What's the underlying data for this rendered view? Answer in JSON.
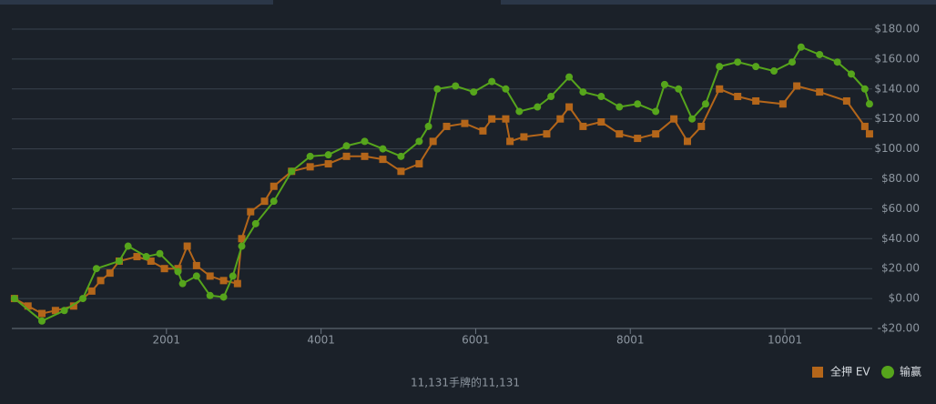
{
  "chart_data": {
    "type": "line",
    "footer": "11,131手牌的11,131",
    "xlim": [
      1,
      11131
    ],
    "xticks": [
      2001,
      4001,
      6001,
      8001,
      10001
    ],
    "ylim": [
      -20,
      180
    ],
    "yticks": [
      {
        "value": -20,
        "label": "-$20.00"
      },
      {
        "value": 0,
        "label": "$0.00"
      },
      {
        "value": 20,
        "label": "$20.00"
      },
      {
        "value": 40,
        "label": "$40.00"
      },
      {
        "value": 60,
        "label": "$60.00"
      },
      {
        "value": 80,
        "label": "$80.00"
      },
      {
        "value": 100,
        "label": "$100.00"
      },
      {
        "value": 120,
        "label": "$120.00"
      },
      {
        "value": 140,
        "label": "$140.00"
      },
      {
        "value": 160,
        "label": "$160.00"
      },
      {
        "value": 180,
        "label": "$180.00"
      }
    ],
    "grid": true,
    "series": [
      {
        "name": "全押 EV",
        "color": "#b4661a",
        "marker": "square",
        "x": [
          35,
          210,
          390,
          565,
          800,
          1035,
          1150,
          1270,
          1390,
          1620,
          1800,
          1975,
          2150,
          2270,
          2390,
          2565,
          2740,
          2920,
          2975,
          3090,
          3270,
          3390,
          3620,
          3860,
          4095,
          4330,
          4565,
          4800,
          5035,
          5270,
          5450,
          5625,
          5860,
          6095,
          6210,
          6390,
          6445,
          6625,
          6920,
          7095,
          7210,
          7390,
          7625,
          7860,
          8095,
          8330,
          8565,
          8740,
          8920,
          9155,
          9390,
          9625,
          9975,
          10155,
          10450,
          10800,
          11035,
          11095
        ],
        "values": [
          0,
          -5,
          -10,
          -8,
          -5,
          5,
          12,
          17,
          25,
          28,
          25,
          20,
          20,
          35,
          22,
          15,
          12,
          10,
          40,
          58,
          65,
          75,
          85,
          88,
          90,
          95,
          95,
          93,
          85,
          90,
          105,
          115,
          117,
          112,
          120,
          120,
          105,
          108,
          110,
          120,
          128,
          115,
          118,
          110,
          107,
          110,
          120,
          105,
          115,
          140,
          135,
          132,
          130,
          142,
          138,
          132,
          115,
          110
        ]
      },
      {
        "name": "输赢",
        "color": "#56a51c",
        "marker": "circle",
        "x": [
          35,
          390,
          680,
          920,
          1095,
          1390,
          1505,
          1740,
          1915,
          2150,
          2210,
          2390,
          2565,
          2740,
          2860,
          2975,
          3155,
          3390,
          3620,
          3860,
          4095,
          4330,
          4565,
          4800,
          5035,
          5270,
          5390,
          5505,
          5740,
          5975,
          6210,
          6390,
          6565,
          6800,
          6975,
          7210,
          7390,
          7625,
          7860,
          8095,
          8330,
          8445,
          8625,
          8800,
          8975,
          9155,
          9390,
          9625,
          9860,
          10095,
          10210,
          10450,
          10680,
          10860,
          11035,
          11095
        ],
        "values": [
          0,
          -15,
          -8,
          0,
          20,
          25,
          35,
          28,
          30,
          18,
          10,
          15,
          2,
          1,
          15,
          35,
          50,
          65,
          85,
          95,
          96,
          102,
          105,
          100,
          95,
          105,
          115,
          140,
          142,
          138,
          145,
          140,
          125,
          128,
          135,
          148,
          138,
          135,
          128,
          130,
          125,
          143,
          140,
          120,
          130,
          155,
          158,
          155,
          152,
          158,
          168,
          163,
          158,
          150,
          140,
          130
        ]
      }
    ]
  }
}
